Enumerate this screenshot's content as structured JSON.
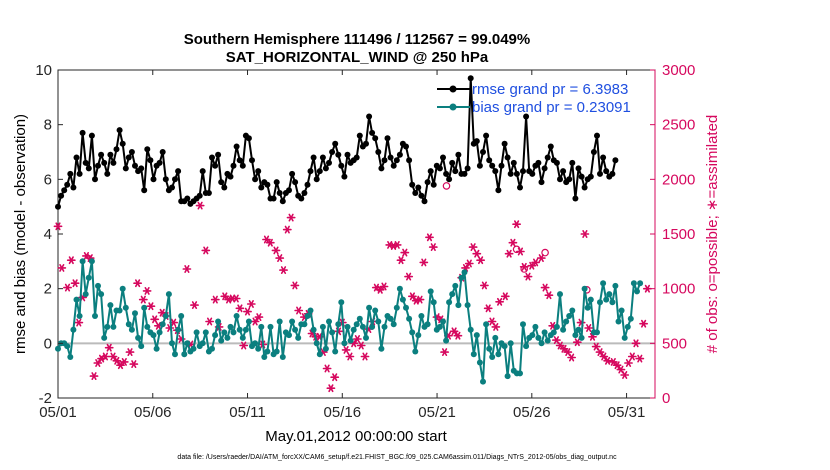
{
  "chart_data": {
    "type": "line",
    "title": "Southern Hemisphere 111496 / 112567 = 99.049%",
    "subtitle": "SAT_HORIZONTAL_WIND @ 250 hPa",
    "xlabel": "May.01,2012 00:00:00 start",
    "ylabel": "rmse and bias (model - observation)",
    "y2label": "# of obs: o=possible; ∗=assimilated",
    "footnote": "data file: /Users/raeder/DAI/ATM_forcXX/CAM6_setup/f.e21.FHIST_BGC.f09_025.CAM6assim.011/Diags_NTrS_2012-05/obs_diag_output.nc",
    "xlim": [
      1,
      32.5
    ],
    "ylim": [
      -2,
      10
    ],
    "y2lim": [
      0,
      3000
    ],
    "x_ticks": [
      1,
      6,
      11,
      16,
      21,
      26,
      31
    ],
    "x_tick_labels": [
      "05/01",
      "05/06",
      "05/11",
      "05/16",
      "05/21",
      "05/26",
      "05/31"
    ],
    "y_ticks": [
      -2,
      0,
      2,
      4,
      6,
      8,
      10
    ],
    "y_tick_labels": [
      "-2",
      "0",
      "2",
      "4",
      "6",
      "8",
      "10"
    ],
    "y2_ticks": [
      0,
      500,
      1000,
      1500,
      2000,
      2500,
      3000
    ],
    "y2_tick_labels": [
      "0",
      "500",
      "1000",
      "1500",
      "2000",
      "2500",
      "3000"
    ],
    "zero_line": 0,
    "colors": {
      "rmse": "#000000",
      "bias": "#0b7f7f",
      "obs": "#d6085e",
      "zero": "#bbbbbb",
      "y2axis": "#d6085e"
    },
    "legend": {
      "position": "top-right",
      "entries": [
        "rmse grand pr = 6.3983",
        "bias grand pr = 0.23091"
      ]
    },
    "series": [
      {
        "name": "rmse grand pr = 6.3983",
        "key": "rmse",
        "values": [
          5.0,
          5.4,
          5.6,
          5.8,
          6.2,
          5.7,
          6.8,
          6.2,
          7.7,
          6.6,
          6.4,
          7.6,
          6.0,
          6.5,
          6.9,
          6.6,
          6.2,
          6.9,
          6.6,
          7.1,
          7.8,
          7.3,
          6.4,
          6.8,
          7.0,
          6.5,
          6.3,
          6.4,
          5.6,
          7.1,
          6.7,
          6.0,
          6.5,
          6.6,
          7.0,
          6.0,
          5.6,
          5.7,
          6.0,
          6.3,
          5.2,
          5.2,
          5.3,
          5.1,
          5.2,
          5.3,
          5.4,
          6.3,
          5.5,
          5.5,
          6.8,
          6.5,
          6.9,
          5.9,
          5.7,
          6.2,
          6.1,
          6.5,
          7.2,
          6.7,
          6.5,
          7.6,
          7.5,
          6.7,
          6.0,
          6.3,
          5.7,
          5.9,
          5.8,
          5.3,
          5.3,
          5.9,
          5.5,
          5.2,
          5.5,
          5.6,
          6.2,
          5.9,
          5.4,
          5.3,
          5.5,
          5.8,
          6.3,
          6.8,
          6.0,
          6.3,
          6.8,
          6.4,
          6.6,
          7.0,
          7.3,
          6.9,
          6.5,
          6.1,
          6.9,
          6.6,
          6.7,
          6.8,
          7.6,
          7.2,
          7.3,
          8.3,
          7.7,
          7.5,
          7.0,
          6.4,
          6.7,
          7.5,
          6.8,
          6.5,
          6.7,
          6.9,
          7.3,
          7.2,
          6.7,
          5.8,
          5.5,
          5.7,
          5.4,
          5.2,
          5.9,
          6.3,
          5.8,
          6.5,
          6.4,
          6.8,
          6.2,
          6.0,
          6.6,
          6.3,
          6.9,
          6.2,
          6.2,
          6.4,
          9.7,
          7.3,
          7.4,
          6.5,
          7.0,
          7.6,
          6.7,
          6.5,
          6.3,
          5.6,
          6.5,
          7.3,
          6.8,
          6.2,
          6.6,
          6.2,
          5.7,
          6.3,
          8.3,
          6.3,
          6.2,
          6.5,
          6.6,
          5.9,
          6.4,
          6.8,
          7.2,
          6.7,
          6.6,
          6.0,
          6.3,
          5.9,
          6.0,
          6.6,
          5.3,
          6.4,
          6.1,
          5.7,
          6.0,
          6.1,
          7.0,
          7.6,
          6.2,
          6.8,
          6.3,
          6.1,
          6.2,
          6.7
        ],
        "x_start": 1.0,
        "x_step": 0.1625
      },
      {
        "name": "bias grand pr = 0.23091",
        "key": "bias",
        "values": [
          -0.2,
          0.0,
          0.0,
          -0.1,
          -0.5,
          0.5,
          1.6,
          1.0,
          3.0,
          1.8,
          2.4,
          3.0,
          1.0,
          2.1,
          1.8,
          0.2,
          0.6,
          1.4,
          0.6,
          1.2,
          1.2,
          2.0,
          1.3,
          0.7,
          0.5,
          1.1,
          0.2,
          -0.1,
          1.3,
          0.6,
          0.4,
          0.3,
          -0.2,
          0.4,
          0.7,
          1.0,
          1.8,
          0.0,
          -0.4,
          0.5,
          1.0,
          -0.4,
          0.0,
          -0.3,
          -0.2,
          0.4,
          -0.1,
          0.0,
          0.4,
          -0.3,
          -0.2,
          0.3,
          0.8,
          0.1,
          0.4,
          0.2,
          0.6,
          0.4,
          1.0,
          0.5,
          0.2,
          0.5,
          0.8,
          -0.1,
          0.0,
          -0.2,
          0.6,
          -0.5,
          -0.3,
          0.6,
          -0.4,
          -0.3,
          0.8,
          -0.5,
          0.4,
          0.3,
          0.8,
          0.5,
          0.2,
          0.7,
          0.7,
          1.0,
          1.2,
          0.5,
          0.0,
          -0.4,
          0.6,
          -0.2,
          0.8,
          0.4,
          -0.3,
          0.7,
          1.5,
          0.0,
          0.6,
          0.1,
          0.5,
          0.7,
          0.9,
          0.6,
          0.2,
          1.3,
          0.6,
          1.2,
          0.8,
          -0.2,
          0.6,
          1.0,
          0.9,
          0.7,
          1.3,
          2.0,
          1.6,
          1.3,
          0.9,
          0.4,
          -0.3,
          0.3,
          1.0,
          0.6,
          0.7,
          1.9,
          1.5,
          0.5,
          0.6,
          0.8,
          0.1,
          1.5,
          1.8,
          2.1,
          1.4,
          2.4,
          2.6,
          1.4,
          0.5,
          -0.4,
          0.3,
          -0.7,
          -1.4,
          0.7,
          -0.2,
          -0.5,
          0.2,
          -0.4,
          0.0,
          -0.1,
          -1.2,
          0.0,
          -1.0,
          -1.1,
          -1.1,
          0.7,
          -0.1,
          0.2,
          0.3,
          0.6,
          0.2,
          0.0,
          0.4,
          0.1,
          0.3,
          0.4,
          0.6,
          1.8,
          0.5,
          0.8,
          1.0,
          1.2,
          0.3,
          0.5,
          0.2,
          2.0,
          1.3,
          1.6,
          0.4,
          0.4,
          1.5,
          2.2,
          1.6,
          1.8,
          1.5,
          2.1,
          0.8,
          1.2,
          0.2,
          0.6,
          0.9,
          2.2,
          1.9,
          2.2
        ],
        "x_start": 1.0,
        "x_step": 0.1625
      }
    ],
    "obs_assimilated": {
      "name": "# of obs assimilated (∗)",
      "axis": "right",
      "points": [
        [
          1.0,
          1570
        ],
        [
          1.2,
          1190
        ],
        [
          1.5,
          1010
        ],
        [
          1.7,
          1260
        ],
        [
          1.9,
          1050
        ],
        [
          2.1,
          690
        ],
        [
          2.3,
          920
        ],
        [
          2.5,
          1300
        ],
        [
          2.7,
          1280
        ],
        [
          2.9,
          200
        ],
        [
          3.1,
          320
        ],
        [
          3.3,
          360
        ],
        [
          3.5,
          380
        ],
        [
          3.7,
          460
        ],
        [
          3.9,
          380
        ],
        [
          4.1,
          340
        ],
        [
          4.3,
          300
        ],
        [
          4.5,
          330
        ],
        [
          4.8,
          420
        ],
        [
          5.0,
          310
        ],
        [
          5.2,
          1050
        ],
        [
          5.5,
          900
        ],
        [
          5.7,
          980
        ],
        [
          5.9,
          840
        ],
        [
          6.1,
          720
        ],
        [
          6.3,
          660
        ],
        [
          6.5,
          780
        ],
        [
          6.7,
          750
        ],
        [
          6.9,
          640
        ],
        [
          7.1,
          690
        ],
        [
          7.3,
          620
        ],
        [
          7.5,
          540
        ],
        [
          7.8,
          1180
        ],
        [
          8.0,
          490
        ],
        [
          8.2,
          850
        ],
        [
          8.5,
          1760
        ],
        [
          8.8,
          1350
        ],
        [
          9.0,
          700
        ],
        [
          9.3,
          900
        ],
        [
          9.5,
          650
        ],
        [
          9.8,
          930
        ],
        [
          10.0,
          900
        ],
        [
          10.2,
          910
        ],
        [
          10.4,
          910
        ],
        [
          10.6,
          820
        ],
        [
          10.8,
          480
        ],
        [
          11.0,
          790
        ],
        [
          11.2,
          860
        ],
        [
          11.4,
          700
        ],
        [
          11.6,
          740
        ],
        [
          11.8,
          490
        ],
        [
          12.0,
          1450
        ],
        [
          12.2,
          1420
        ],
        [
          12.5,
          1350
        ],
        [
          12.7,
          1280
        ],
        [
          12.9,
          1170
        ],
        [
          13.1,
          1540
        ],
        [
          13.3,
          1650
        ],
        [
          13.5,
          1030
        ],
        [
          13.7,
          800
        ],
        [
          14.0,
          740
        ],
        [
          14.2,
          770
        ],
        [
          14.4,
          590
        ],
        [
          14.6,
          560
        ],
        [
          14.8,
          560
        ],
        [
          15.0,
          420
        ],
        [
          15.2,
          270
        ],
        [
          15.4,
          90
        ],
        [
          15.6,
          190
        ],
        [
          15.8,
          610
        ],
        [
          16.0,
          690
        ],
        [
          16.2,
          440
        ],
        [
          16.4,
          380
        ],
        [
          16.6,
          500
        ],
        [
          16.8,
          540
        ],
        [
          17.0,
          480
        ],
        [
          17.2,
          380
        ],
        [
          17.4,
          630
        ],
        [
          17.6,
          700
        ],
        [
          17.8,
          1010
        ],
        [
          18.0,
          990
        ],
        [
          18.2,
          1020
        ],
        [
          18.5,
          1400
        ],
        [
          18.7,
          1390
        ],
        [
          18.9,
          1400
        ],
        [
          19.1,
          1260
        ],
        [
          19.3,
          1330
        ],
        [
          19.5,
          1110
        ],
        [
          19.7,
          930
        ],
        [
          19.9,
          890
        ],
        [
          20.1,
          900
        ],
        [
          20.3,
          1240
        ],
        [
          20.6,
          1470
        ],
        [
          20.8,
          1380
        ],
        [
          21.0,
          740
        ],
        [
          21.2,
          720
        ],
        [
          21.4,
          420
        ],
        [
          21.6,
          570
        ],
        [
          21.9,
          610
        ],
        [
          22.1,
          570
        ],
        [
          22.3,
          1100
        ],
        [
          22.5,
          1190
        ],
        [
          22.7,
          1230
        ],
        [
          22.9,
          1380
        ],
        [
          23.1,
          1320
        ],
        [
          23.3,
          1260
        ],
        [
          23.5,
          1030
        ],
        [
          23.7,
          820
        ],
        [
          23.9,
          700
        ],
        [
          24.1,
          650
        ],
        [
          24.3,
          880
        ],
        [
          24.6,
          930
        ],
        [
          24.8,
          1320
        ],
        [
          25.0,
          1420
        ],
        [
          25.2,
          1590
        ],
        [
          25.4,
          1340
        ],
        [
          25.6,
          1200
        ],
        [
          25.8,
          1110
        ],
        [
          26.0,
          1210
        ],
        [
          26.2,
          1240
        ],
        [
          26.5,
          1280
        ],
        [
          26.7,
          1010
        ],
        [
          26.9,
          940
        ],
        [
          27.1,
          660
        ],
        [
          27.3,
          530
        ],
        [
          27.5,
          480
        ],
        [
          27.7,
          450
        ],
        [
          27.9,
          420
        ],
        [
          28.1,
          370
        ],
        [
          28.4,
          510
        ],
        [
          28.6,
          690
        ],
        [
          28.8,
          1500
        ],
        [
          29.0,
          640
        ],
        [
          29.2,
          560
        ],
        [
          29.4,
          470
        ],
        [
          29.6,
          420
        ],
        [
          29.8,
          380
        ],
        [
          30.0,
          340
        ],
        [
          30.3,
          330
        ],
        [
          30.5,
          300
        ],
        [
          30.7,
          260
        ],
        [
          30.9,
          210
        ],
        [
          31.1,
          320
        ],
        [
          31.3,
          380
        ],
        [
          31.5,
          500
        ],
        [
          31.7,
          360
        ],
        [
          31.9,
          680
        ],
        [
          32.1,
          1000
        ]
      ]
    },
    "obs_possible": {
      "name": "# of obs possible (o)",
      "axis": "right",
      "points": [
        [
          21.5,
          1940
        ],
        [
          25.2,
          1360
        ],
        [
          25.6,
          1180
        ],
        [
          26.7,
          1330
        ],
        [
          28.9,
          990
        ]
      ]
    }
  }
}
